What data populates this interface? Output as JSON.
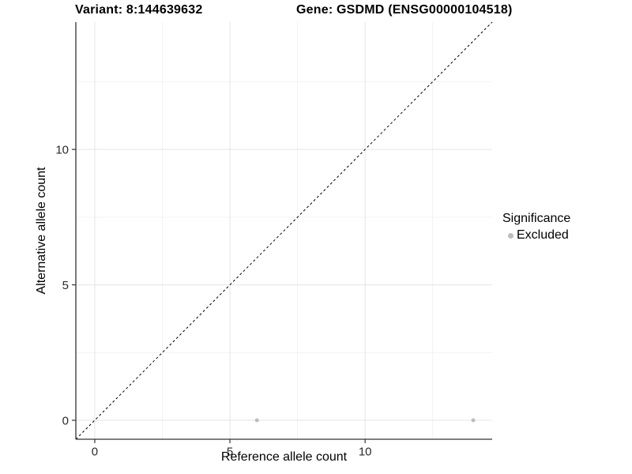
{
  "chart_data": {
    "type": "scatter",
    "title_left": "Variant: 8:144639632",
    "title_right": "Gene: GSDMD (ENSG00000104518)",
    "xlabel": "Reference allele count",
    "ylabel": "Alternative allele count",
    "xlim": [
      -0.7,
      14.7
    ],
    "ylim": [
      -0.7,
      14.7
    ],
    "x_ticks": [
      0,
      5,
      10
    ],
    "y_ticks": [
      0,
      5,
      10
    ],
    "x_minor_ticks": [
      2.5,
      7.5,
      12.5
    ],
    "y_minor_ticks": [
      2.5,
      7.5,
      12.5
    ],
    "grid": true,
    "legend_position": "right",
    "series": [
      {
        "name": "Excluded",
        "color": "#bdbdbd",
        "points": [
          [
            6,
            0
          ],
          [
            14,
            0
          ]
        ]
      }
    ],
    "identity_line": {
      "style": "dashed",
      "color": "#000000",
      "dash": "3,3"
    },
    "legend": {
      "title": "Significance",
      "items": [
        {
          "label": "Excluded",
          "color": "#bdbdbd"
        }
      ]
    },
    "colors": {
      "background": "#ffffff",
      "grid_major": "#e5e5e5",
      "grid_minor": "#f2f2f2",
      "axis_line": "#333333",
      "tick_text": "#2b2b2b",
      "point": "#bdbdbd"
    }
  }
}
